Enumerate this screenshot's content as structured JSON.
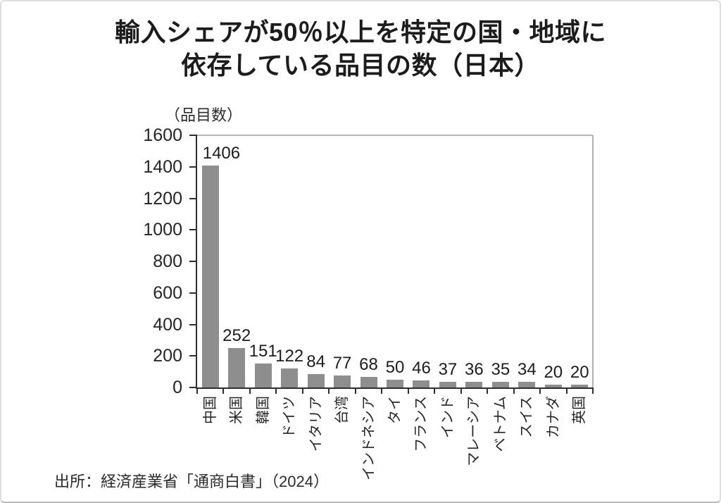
{
  "title": {
    "line1": "輸入シェアが50％以上を特定の国・地域に",
    "line2": "依存している品目の数（日本）"
  },
  "chart_data": {
    "type": "bar",
    "title": "輸入シェアが50％以上を特定の国・地域に依存している品目の数（日本）",
    "unit_label": "（品目数）",
    "categories": [
      "中国",
      "米国",
      "韓国",
      "ドイツ",
      "イタリア",
      "台湾",
      "インドネシア",
      "タイ",
      "フランス",
      "インド",
      "マレーシア",
      "ベトナム",
      "スイス",
      "カナダ",
      "英国"
    ],
    "values": [
      1406,
      252,
      151,
      122,
      84,
      77,
      68,
      50,
      46,
      37,
      36,
      35,
      34,
      20,
      20
    ],
    "xlabel": "",
    "ylabel": "（品目数）",
    "ylim": [
      0,
      1600
    ],
    "ytick_step": 200,
    "grid": false,
    "legend": false,
    "bar_color": "#8e8e8e",
    "axis_color": "#2e2e2e",
    "border_color": "#b3b3b3"
  },
  "source": "出所：経済産業省「通商白書」（2024）"
}
